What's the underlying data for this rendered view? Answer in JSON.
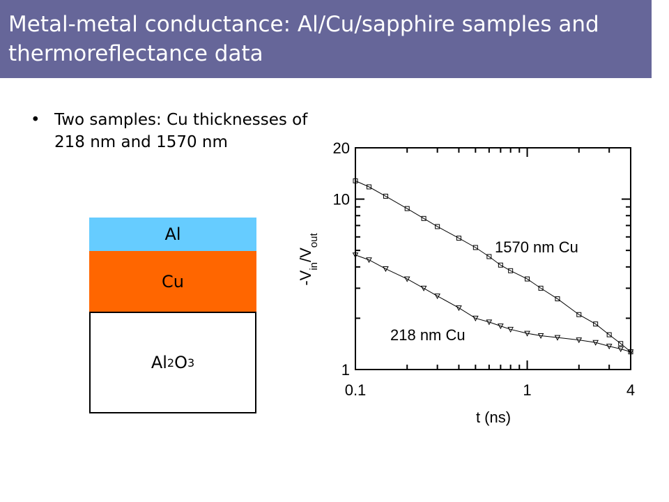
{
  "slide": {
    "title": "Metal-metal conductance: Al/Cu/sapphire samples and thermoreflectance data",
    "bullets": [
      "Two samples: Cu thicknesses of 218 nm and 1570 nm"
    ],
    "layers": [
      {
        "label": [
          "Al"
        ],
        "color": "#66ccff"
      },
      {
        "label": [
          "Cu"
        ],
        "color": "#ff6600"
      },
      {
        "label": [
          "Al",
          "2",
          "O",
          "3"
        ],
        "color": "#ffffff"
      }
    ]
  },
  "chart_data": {
    "type": "scatter",
    "xlabel": "t (ns)",
    "ylabel": [
      "-V",
      "in",
      "/V",
      "out"
    ],
    "xlog": true,
    "ylog": true,
    "xlim": [
      0.1,
      4
    ],
    "ylim": [
      1,
      20
    ],
    "xticks": [
      0.1,
      1,
      4
    ],
    "yticks": [
      1,
      10,
      20
    ],
    "annotations": [
      "1570 nm Cu",
      "218 nm Cu"
    ],
    "x": [
      0.1,
      0.12,
      0.15,
      0.2,
      0.25,
      0.3,
      0.4,
      0.5,
      0.6,
      0.7,
      0.8,
      1,
      1.2,
      1.5,
      2,
      2.5,
      3,
      3.5,
      4
    ],
    "series": [
      {
        "marker": "square",
        "color": "#000000",
        "values": [
          12.8,
          11.8,
          10.4,
          8.8,
          7.7,
          6.9,
          5.9,
          5.2,
          4.6,
          4.1,
          3.8,
          3.4,
          3.0,
          2.6,
          2.1,
          1.85,
          1.6,
          1.42,
          1.27
        ]
      },
      {
        "marker": "triangle",
        "color": "#000000",
        "values": [
          4.7,
          4.4,
          3.9,
          3.4,
          3.0,
          2.7,
          2.3,
          2.0,
          1.9,
          1.8,
          1.72,
          1.63,
          1.58,
          1.54,
          1.49,
          1.44,
          1.37,
          1.32,
          1.27
        ]
      }
    ]
  }
}
